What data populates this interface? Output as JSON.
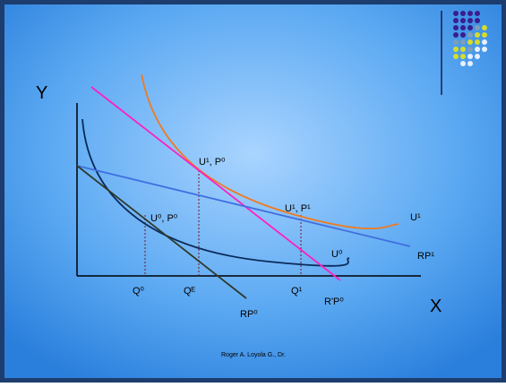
{
  "axes": {
    "y": "Y",
    "x": "X"
  },
  "points": {
    "top": "U¹, P⁰",
    "right": "U¹, P¹",
    "left": "U⁰, P⁰"
  },
  "curves": {
    "u1": "U¹",
    "u0": "U⁰",
    "rp1": "RP¹",
    "rp0": "RP⁰",
    "rpp0": "R'P⁰"
  },
  "quantities": {
    "q0": "Q⁰",
    "qe": "Qᴱ",
    "q1": "Q¹"
  },
  "footer": "Roger A. Loyola G., Dr."
}
